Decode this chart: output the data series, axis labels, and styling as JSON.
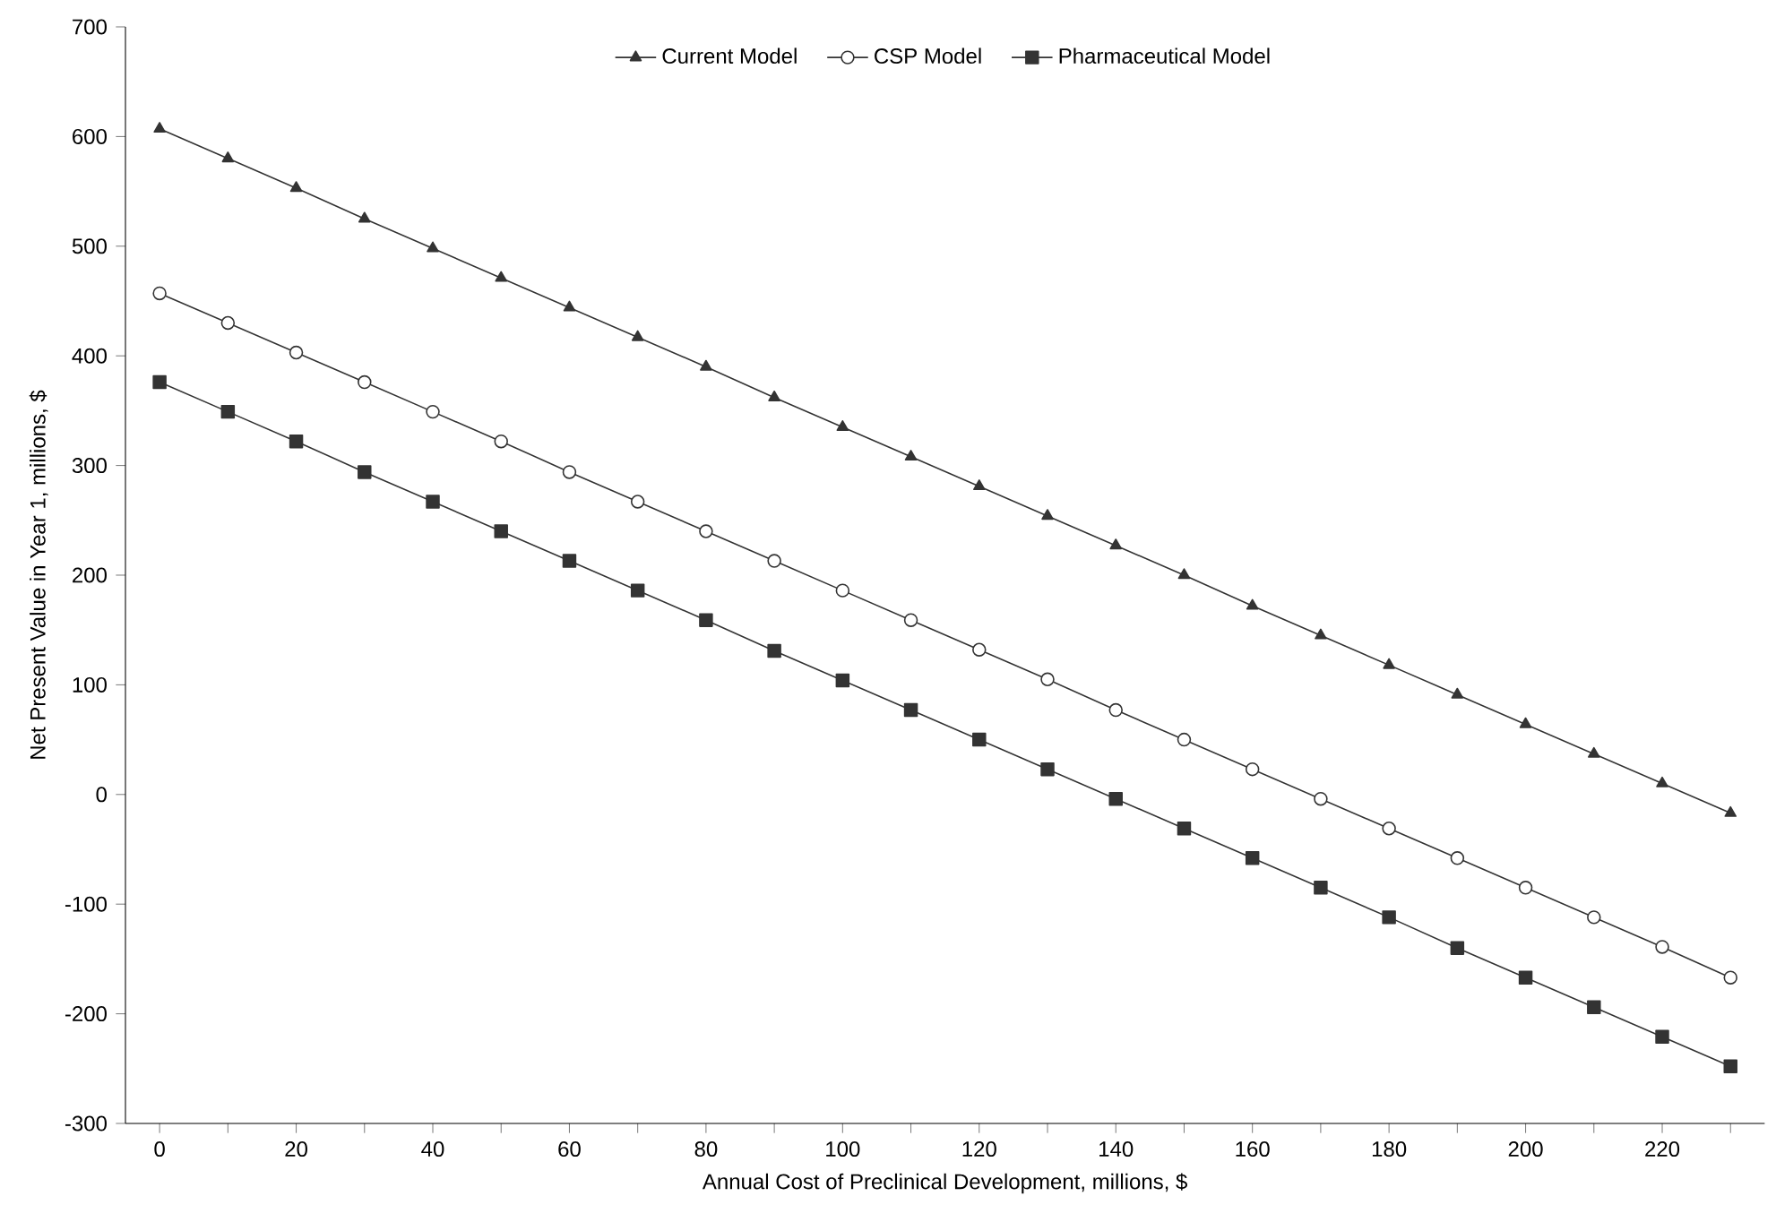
{
  "chart_data": {
    "type": "line",
    "xlabel": "Annual Cost of Preclinical Development, millions, $",
    "ylabel": "Net Present Value in Year 1, millions, $",
    "x": [
      0,
      10,
      20,
      30,
      40,
      50,
      60,
      70,
      80,
      90,
      100,
      110,
      120,
      130,
      140,
      150,
      160,
      170,
      180,
      190,
      200,
      210,
      220,
      230
    ],
    "series": [
      {
        "name": "Current Model",
        "color": "#333333",
        "marker": "triangle",
        "values": [
          607,
          580,
          553,
          525,
          498,
          471,
          444,
          417,
          390,
          362,
          335,
          308,
          281,
          254,
          227,
          200,
          172,
          145,
          118,
          91,
          64,
          37,
          10,
          -17
        ]
      },
      {
        "name": "CSP Model",
        "color": "#333333",
        "marker": "circle",
        "values": [
          457,
          430,
          403,
          376,
          349,
          322,
          294,
          267,
          240,
          213,
          186,
          159,
          132,
          105,
          77,
          50,
          23,
          -4,
          -31,
          -58,
          -85,
          -112,
          -139,
          -167
        ]
      },
      {
        "name": "Pharmaceutical Model",
        "color": "#333333",
        "marker": "square",
        "values": [
          376,
          349,
          322,
          294,
          267,
          240,
          213,
          186,
          159,
          131,
          104,
          77,
          50,
          23,
          -4,
          -31,
          -58,
          -85,
          -112,
          -140,
          -167,
          -194,
          -221,
          -248
        ]
      }
    ],
    "xlim": [
      -5,
      235
    ],
    "xticks": [
      0,
      {
        "value": 10,
        "label": null
      },
      20,
      {
        "value": 30,
        "label": null
      },
      40,
      {
        "value": 50,
        "label": null
      },
      60,
      {
        "value": 70,
        "label": null
      },
      80,
      {
        "value": 90,
        "label": null
      },
      100,
      {
        "value": 110,
        "label": null
      },
      120,
      {
        "value": 130,
        "label": null
      },
      140,
      {
        "value": 150,
        "label": null
      },
      160,
      {
        "value": 170,
        "label": null
      },
      180,
      {
        "value": 190,
        "label": null
      },
      200,
      {
        "value": 210,
        "label": null
      },
      220,
      {
        "value": 230,
        "label": null
      }
    ],
    "ylim": [
      -300,
      700
    ],
    "yticks": [
      -300,
      -200,
      -100,
      0,
      100,
      200,
      300,
      400,
      500,
      600,
      700
    ],
    "grid": false,
    "legend": "top",
    "line_style": "solid"
  }
}
